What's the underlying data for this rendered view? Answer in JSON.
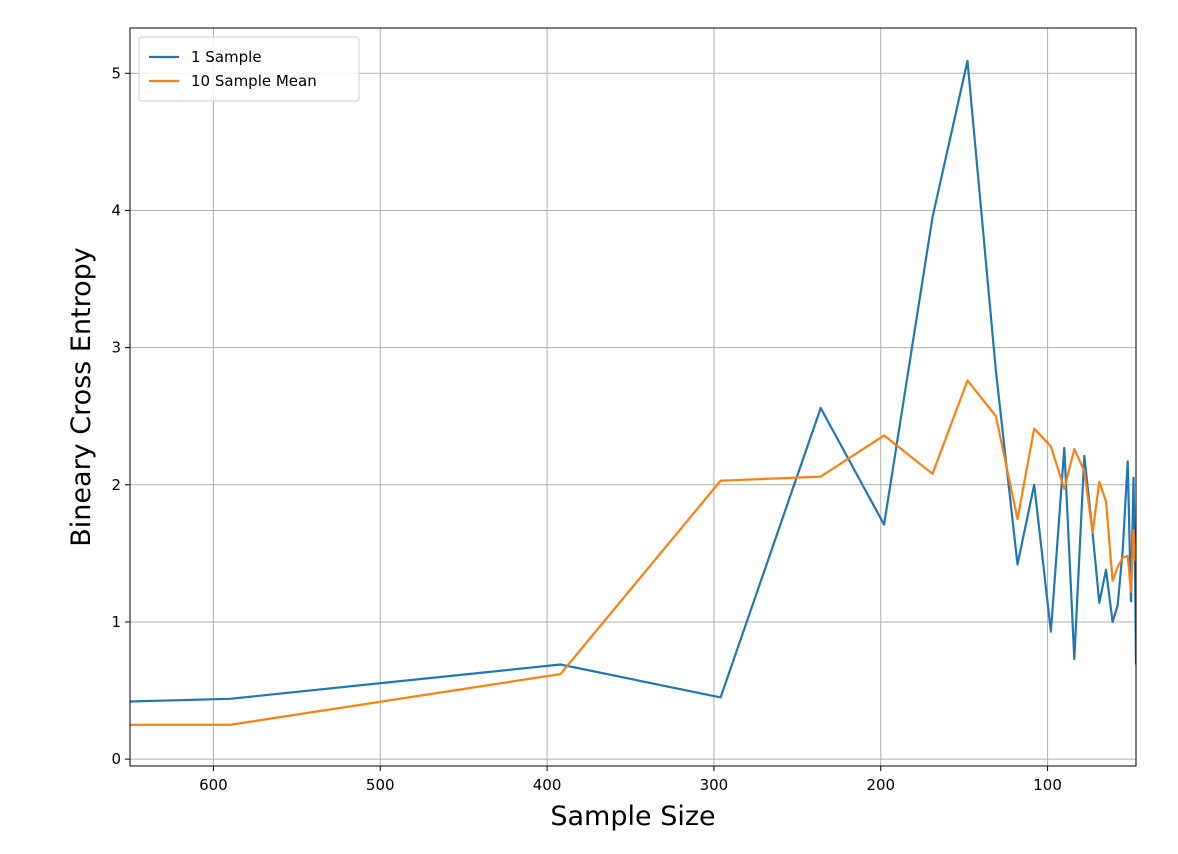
{
  "chart_data": {
    "type": "line",
    "xlabel": "Sample Size",
    "ylabel": "Bineary Cross Entropy",
    "xlim": [
      650,
      47
    ],
    "ylim": [
      -0.05,
      5.33
    ],
    "x_inverted": true,
    "grid": true,
    "legend_position": "top-left",
    "xticks": [
      600,
      500,
      400,
      300,
      200,
      100
    ],
    "yticks": [
      0,
      1,
      2,
      3,
      4,
      5
    ],
    "series": [
      {
        "name": "1 Sample",
        "color": "#1f77b4",
        "points": [
          [
            650,
            0.42
          ],
          [
            590,
            0.44
          ],
          [
            392,
            0.69
          ],
          [
            296,
            0.45
          ],
          [
            236,
            2.56
          ],
          [
            198,
            1.71
          ],
          [
            169,
            3.95
          ],
          [
            148,
            5.09
          ],
          [
            131,
            2.83
          ],
          [
            118,
            1.42
          ],
          [
            108,
            2.0
          ],
          [
            98,
            0.93
          ],
          [
            90,
            2.27
          ],
          [
            84,
            0.73
          ],
          [
            78,
            2.21
          ],
          [
            73,
            1.65
          ],
          [
            69,
            1.14
          ],
          [
            65,
            1.38
          ],
          [
            61,
            1.0
          ],
          [
            58,
            1.12
          ],
          [
            55,
            1.52
          ],
          [
            52,
            2.17
          ],
          [
            50,
            1.15
          ],
          [
            48.5,
            2.05
          ],
          [
            47.5,
            1.3
          ],
          [
            47,
            0.69
          ]
        ]
      },
      {
        "name": "10 Sample Mean",
        "color": "#ff7f0e",
        "points": [
          [
            650,
            0.25
          ],
          [
            590,
            0.25
          ],
          [
            392,
            0.62
          ],
          [
            296,
            2.03
          ],
          [
            236,
            2.06
          ],
          [
            198,
            2.36
          ],
          [
            169,
            2.08
          ],
          [
            148,
            2.76
          ],
          [
            131,
            2.5
          ],
          [
            118,
            1.75
          ],
          [
            108,
            2.41
          ],
          [
            98,
            2.28
          ],
          [
            90,
            1.97
          ],
          [
            84,
            2.26
          ],
          [
            78,
            2.1
          ],
          [
            73,
            1.65
          ],
          [
            69,
            2.02
          ],
          [
            65,
            1.88
          ],
          [
            61,
            1.3
          ],
          [
            58,
            1.4
          ],
          [
            55,
            1.47
          ],
          [
            52,
            1.48
          ],
          [
            50,
            1.22
          ],
          [
            48.5,
            1.67
          ],
          [
            47.5,
            1.45
          ],
          [
            47,
            1.55
          ]
        ]
      }
    ]
  }
}
